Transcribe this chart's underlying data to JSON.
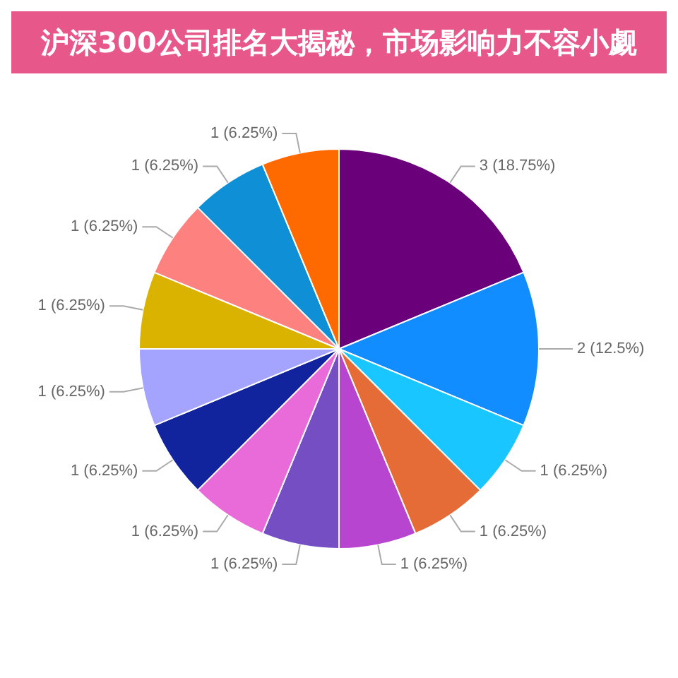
{
  "chart_data": {
    "type": "pie",
    "title": "沪深300公司排名大揭秘，市场影响力不容小觑",
    "categories": [
      null,
      null,
      null,
      null,
      null,
      null,
      null,
      null,
      null,
      null,
      null,
      null,
      null
    ],
    "values": [
      3,
      2,
      1,
      1,
      1,
      1,
      1,
      1,
      1,
      1,
      1,
      1,
      1
    ],
    "colors": [
      "#6b007b",
      "#118dff",
      "#1ac6ff",
      "#e66c37",
      "#b845d0",
      "#744ec2",
      "#e96ad9",
      "#12239e",
      "#a4a4ff",
      "#d9b300",
      "#fd817e",
      "#0e8fd6",
      "#ff6a00"
    ],
    "value_labels": [
      "3 (18.75%)",
      "2 (12.5%)",
      "1 (6.25%)",
      "1 (6.25%)",
      "1 (6.25%)",
      "1 (6.25%)",
      "1 (6.25%)",
      "1 (6.25%)",
      "1 (6.25%)",
      "1 (6.25%)",
      "1 (6.25%)",
      "1 (6.25%)",
      "1 (6.25%)"
    ],
    "legend": false
  }
}
